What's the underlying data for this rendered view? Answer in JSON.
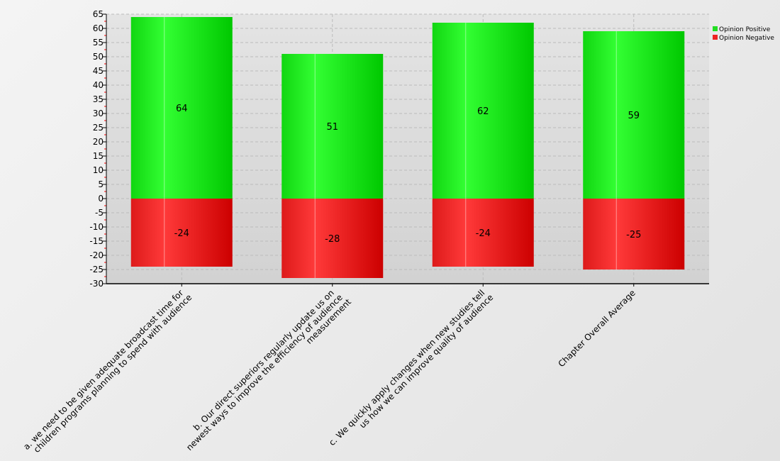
{
  "chart_data": {
    "type": "bar",
    "stacked": true,
    "categories": [
      [
        "a. we need to be given adequate broadcast time for",
        "children programs planning to spend with audience"
      ],
      [
        "b. Our direct superiors regularly update us on",
        "newest ways to improve the efficiency of audience",
        "measurement"
      ],
      [
        "c. We quickly apply changes when new studies tell",
        "us how we can improve quality of audience"
      ],
      [
        "Chapter Overall Average"
      ]
    ],
    "series": [
      {
        "name": "Opinion Positive",
        "values": [
          64,
          51,
          62,
          59
        ],
        "color": "#22dd22"
      },
      {
        "name": "Opinion Negative",
        "values": [
          -24,
          -28,
          -24,
          -25
        ],
        "color": "#ee2222"
      }
    ],
    "ylim": [
      -30,
      65
    ],
    "yticks": [
      -30,
      -25,
      -20,
      -15,
      -10,
      -5,
      0,
      5,
      10,
      15,
      20,
      25,
      30,
      35,
      40,
      45,
      50,
      55,
      60,
      65
    ],
    "grid": true,
    "legend": "top-right",
    "title": "",
    "xlabel": "",
    "ylabel": ""
  }
}
